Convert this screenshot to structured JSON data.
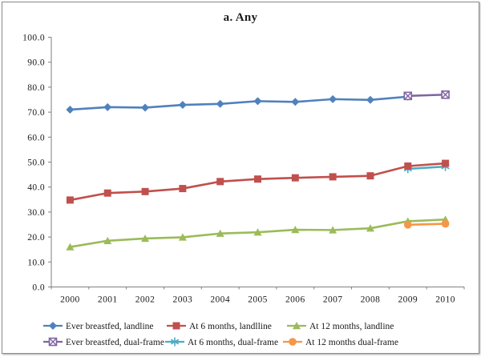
{
  "figure": {
    "background": "#FFFFFF",
    "border_color": "#8C8C8C",
    "axis_color": "#7F7F7F",
    "text_color": "#1A1A1A"
  },
  "chart_data": {
    "type": "line",
    "title": "a. Any",
    "x_labels": [
      "2000",
      "2001",
      "2002",
      "2003",
      "2004",
      "2005",
      "2006",
      "2007",
      "2008",
      "2009",
      "2010"
    ],
    "ylim": [
      0,
      100
    ],
    "ytick_step": 10,
    "ytick_decimals": 1,
    "grid": false,
    "legend_position": "bottom",
    "series": [
      {
        "name": "Ever breastfed, landline",
        "color": "#4F81BD",
        "marker": "diamond",
        "values": [
          71.0,
          72.0,
          71.8,
          72.9,
          73.3,
          74.4,
          74.1,
          75.2,
          74.9,
          76.2,
          null
        ]
      },
      {
        "name": "At 6 months, landlline",
        "color": "#C0504D",
        "marker": "square",
        "values": [
          34.8,
          37.6,
          38.2,
          39.4,
          42.2,
          43.2,
          43.7,
          44.1,
          44.5,
          48.4,
          49.5
        ]
      },
      {
        "name": "At 12 months, landline",
        "color": "#9BBB59",
        "marker": "triangle",
        "values": [
          16.0,
          18.5,
          19.4,
          19.9,
          21.4,
          21.9,
          22.9,
          22.8,
          23.5,
          26.3,
          27.0
        ]
      },
      {
        "name": "Ever breastfed, dual-frame",
        "color": "#8064A2",
        "marker": "boxed-x",
        "values": [
          null,
          null,
          null,
          null,
          null,
          null,
          null,
          null,
          null,
          76.5,
          77.0
        ]
      },
      {
        "name": "At 6 months, dual-frame",
        "color": "#4BACC6",
        "marker": "asterisk",
        "values": [
          null,
          null,
          null,
          null,
          null,
          null,
          null,
          null,
          null,
          47.3,
          48.2
        ]
      },
      {
        "name": "At 12 months dual-frame",
        "color": "#F79646",
        "marker": "circle",
        "values": [
          null,
          null,
          null,
          null,
          null,
          null,
          null,
          null,
          null,
          24.9,
          25.3
        ]
      }
    ],
    "draw_order": [
      4,
      1,
      0,
      3,
      2,
      5
    ],
    "legend_rows": [
      [
        0,
        1,
        2
      ],
      [
        3,
        4,
        5
      ]
    ]
  }
}
